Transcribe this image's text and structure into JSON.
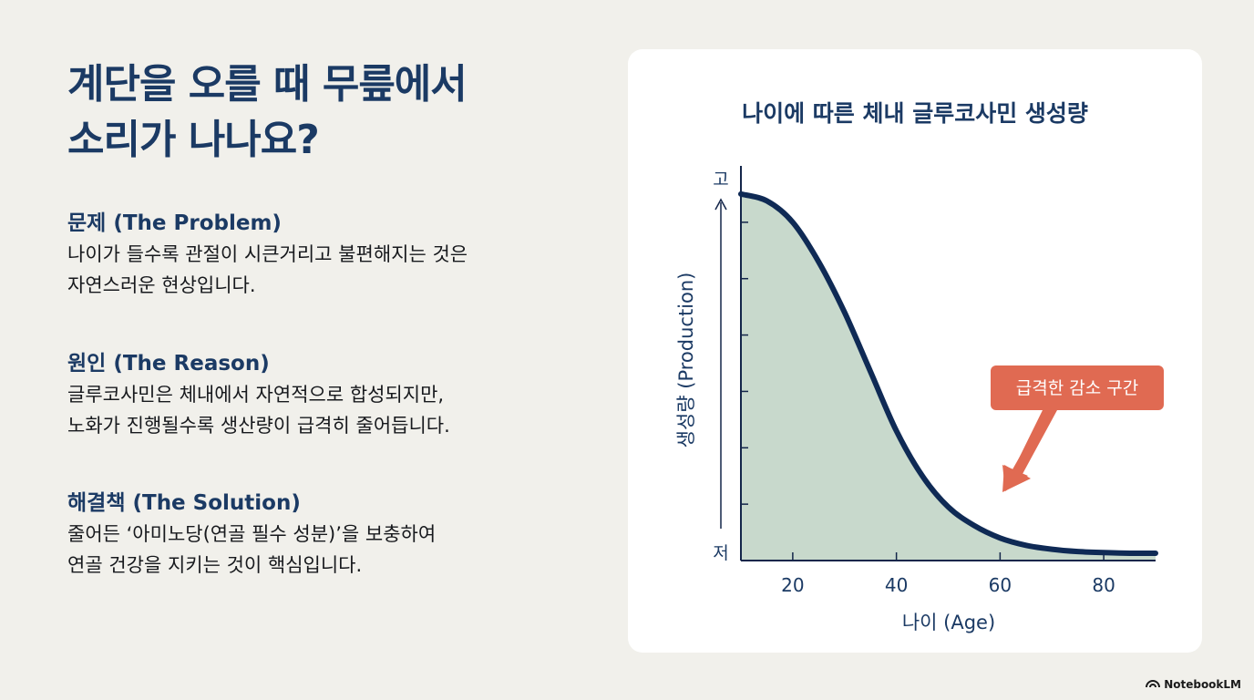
{
  "slide": {
    "title_lines": [
      "계단을 오를 때 무릎에서",
      "소리가 나나요?"
    ],
    "sections": [
      {
        "heading": "문제 (The Problem)",
        "lines": [
          "나이가 들수록 관절이 시큰거리고 불편해지는 것은",
          "자연스러운 현상입니다."
        ]
      },
      {
        "heading": "원인 (The Reason)",
        "lines": [
          "글루코사민은 체내에서 자연적으로 합성되지만,",
          "노화가 진행될수록 생산량이 급격히 줄어듭니다."
        ]
      },
      {
        "heading": "해결책 (The Solution)",
        "lines": [
          "줄어든 ‘아미노당(연골 필수 성분)’을 보충하여",
          "연골 건강을 지키는 것이 핵심입니다."
        ]
      }
    ]
  },
  "chart_data": {
    "type": "area",
    "title": "나이에 따른 체내 글루코사민 생성량",
    "xlabel": "나이 (Age)",
    "ylabel": "생성량 (Production)",
    "y_high_label": "고",
    "y_low_label": "저",
    "x_ticks": [
      20,
      40,
      60,
      80
    ],
    "xlim": [
      10,
      90
    ],
    "ylim": [
      0,
      7
    ],
    "y_ticks_unlabeled": [
      1,
      2,
      3,
      4,
      5,
      6
    ],
    "series": [
      {
        "x": [
          10,
          15,
          20,
          25,
          30,
          35,
          40,
          45,
          50,
          55,
          60,
          65,
          70,
          75,
          80,
          85,
          90
        ],
        "y": [
          6.5,
          6.38,
          6.0,
          5.3,
          4.4,
          3.35,
          2.3,
          1.5,
          0.95,
          0.62,
          0.4,
          0.27,
          0.2,
          0.16,
          0.14,
          0.13,
          0.13
        ]
      }
    ],
    "annotation": {
      "text": "급격한 감소 구간"
    },
    "colors": {
      "line": "#0f2a55",
      "fill": "#c8d9cc",
      "axis": "#14264a",
      "annotation": "#e06a52",
      "title": "#1b3a64"
    }
  },
  "watermark": {
    "text": "NotebookLM",
    "icon": "notebooklm-logo-icon"
  }
}
